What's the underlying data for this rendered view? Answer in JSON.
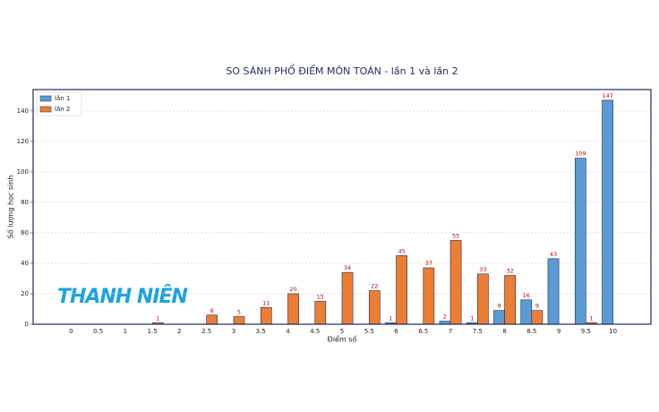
{
  "chart_data": {
    "type": "bar",
    "title": "SO SÁNH PHỔ ĐIỂM MÔN TOÁN - lần 1 và lần 2",
    "x_label": "Điểm số",
    "y_label": "Số lượng học sinh",
    "watermark": "THANH NIÊN",
    "categories": [
      "0",
      "0.5",
      "1",
      "1.5",
      "2",
      "2.5",
      "3",
      "3.5",
      "4",
      "4.5",
      "5",
      "5.5",
      "6",
      "6.5",
      "7",
      "7.5",
      "8",
      "8.5",
      "9",
      "9.5",
      "10"
    ],
    "series": [
      {
        "name": "lần 1",
        "color": "#5b9bd5",
        "values": [
          0,
          0,
          0,
          0,
          0,
          0,
          0,
          0,
          0,
          0,
          0,
          0,
          1,
          0,
          2,
          1,
          9,
          16,
          43,
          109,
          147
        ]
      },
      {
        "name": "lần 2",
        "color": "#ed7d31",
        "values": [
          0,
          0,
          0,
          1,
          0,
          6,
          5,
          11,
          20,
          15,
          34,
          22,
          45,
          37,
          55,
          33,
          32,
          9,
          0,
          1,
          0
        ]
      }
    ],
    "ylim": [
      0,
      154
    ],
    "yticks": [
      0,
      20,
      40,
      60,
      80,
      100,
      120,
      140
    ],
    "grid": true,
    "legend": "upper left"
  }
}
